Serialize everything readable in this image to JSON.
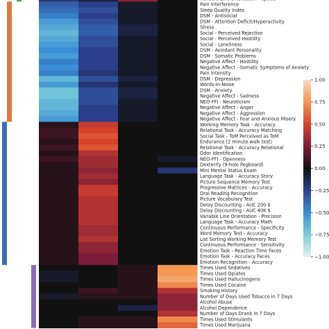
{
  "chart_data": {
    "type": "heatmap",
    "title": "",
    "xlabel": "",
    "ylabel": "",
    "n_columns": 4,
    "rows": [
      "Variable Line Orientation - Speed",
      "Pain Interference",
      "Sleep Quality Index",
      "DSM - Antisocial",
      "DSM - Attention Deficit/Hyperactivity",
      "Stress",
      "Social - Perceived Rejection",
      "Social - Perceived Hostility",
      "Social - Loneliness",
      "DSM - Avoidant Personality",
      "DSM - Somatic Problems",
      "Negative Affect - Hostility",
      "Negative Affect - Somatic Symptoms of Anxiety",
      "Pain Intensity",
      "DSM - Depression",
      "Words-In-Noise",
      "DSM - Anxiety",
      "Negative Affect - Sadness",
      "NEO-FFI - Neuroticism",
      "Negative Affect - Anger",
      "Negative Affect - Aggression",
      "Negative Affect - Fear and Anxious Misery",
      "Working Memory Task - Accuracy",
      "Relational Task - Accuracy Matching",
      "Social Task - ToM Perceived as ToM",
      "Endurance (2 minute walk test)",
      "Relational Task - Accuracy Relational",
      "Odor Identification",
      "NEO-FFI - Openness",
      "Dexterity (9-hole Pegboard)",
      "Mini Mental Status Exam",
      "Language Task - Accuracy Story",
      "Picture Sequence Memory Test",
      "Progressive Matrices - Accuracy",
      "Oral Reading Recognition",
      "Picture Vocabulary Test",
      "Delay Discounting - AUC 200 $",
      "Delay Discounting - AUC 40K $",
      "Variable Line Orientation - Precision",
      "Language Task - Accuracy Math",
      "Continuous Performance - Specificity",
      "Word Memory Test - Accuracy",
      "List Sorting Working Memory Test",
      "Continuous Performance - Sensitivity",
      "Emotion Task - Reaction Time Faces",
      "Emotion Task - Accuracy Faces",
      "Emotion Recognition - Accuracy",
      "Times Used Sedatives",
      "Times Used Opiates",
      "Times Used Hallucinogens",
      "Times Used Cocaine",
      "Smoking History",
      "Number of Days Used Tobacco in 7 Days",
      "Alcohol Abuse",
      "Alcohol Dependence",
      "Number of Days Drank in 7 Days",
      "Times Used Stimulants",
      "Times Used Marijuana"
    ],
    "values": [
      [
        -0.2,
        -0.1,
        0.3,
        0.0
      ],
      [
        -0.35,
        -0.25,
        -0.05,
        0.0
      ],
      [
        -0.4,
        -0.3,
        -0.05,
        0.0
      ],
      [
        -0.45,
        -0.25,
        -0.05,
        0.0
      ],
      [
        -0.55,
        -0.3,
        -0.05,
        0.0
      ],
      [
        -0.6,
        -0.35,
        -0.1,
        0.0
      ],
      [
        -0.65,
        -0.35,
        -0.1,
        0.0
      ],
      [
        -0.6,
        -0.3,
        -0.05,
        0.0
      ],
      [
        -0.55,
        -0.3,
        -0.05,
        0.0
      ],
      [
        -0.5,
        -0.25,
        -0.05,
        0.0
      ],
      [
        -0.55,
        -0.25,
        -0.05,
        0.0
      ],
      [
        -0.45,
        -0.25,
        -0.05,
        0.0
      ],
      [
        -0.5,
        -0.25,
        -0.05,
        0.0
      ],
      [
        -0.45,
        -0.2,
        -0.05,
        0.0
      ],
      [
        -0.65,
        -0.3,
        -0.1,
        0.0
      ],
      [
        -0.55,
        -0.2,
        -0.05,
        0.0
      ],
      [
        -0.7,
        -0.3,
        -0.1,
        0.0
      ],
      [
        -0.7,
        -0.3,
        -0.1,
        0.0
      ],
      [
        -0.65,
        -0.3,
        -0.05,
        0.0
      ],
      [
        -0.65,
        -0.25,
        -0.05,
        0.0
      ],
      [
        -0.6,
        -0.25,
        -0.05,
        0.0
      ],
      [
        -0.55,
        -0.25,
        -0.05,
        0.0
      ],
      [
        0.05,
        0.45,
        0.0,
        0.0
      ],
      [
        0.1,
        0.5,
        0.0,
        0.0
      ],
      [
        0.1,
        0.55,
        0.0,
        0.0
      ],
      [
        0.05,
        0.5,
        0.0,
        0.0
      ],
      [
        0.1,
        0.55,
        0.0,
        0.0
      ],
      [
        0.05,
        0.4,
        0.0,
        0.0
      ],
      [
        0.1,
        0.35,
        0.0,
        -0.05
      ],
      [
        0.05,
        0.35,
        0.0,
        0.0
      ],
      [
        0.05,
        0.3,
        0.0,
        -0.2
      ],
      [
        0.05,
        0.35,
        0.0,
        0.0
      ],
      [
        0.05,
        0.3,
        0.0,
        0.0
      ],
      [
        0.05,
        0.45,
        0.0,
        0.0
      ],
      [
        0.05,
        0.45,
        0.0,
        0.0
      ],
      [
        0.05,
        0.4,
        0.0,
        0.0
      ],
      [
        0.05,
        0.4,
        0.0,
        0.0
      ],
      [
        0.05,
        0.4,
        0.0,
        0.0
      ],
      [
        0.05,
        0.4,
        0.0,
        0.0
      ],
      [
        0.05,
        0.4,
        0.0,
        0.0
      ],
      [
        0.05,
        0.35,
        0.0,
        0.0
      ],
      [
        0.05,
        0.35,
        0.0,
        0.0
      ],
      [
        0.05,
        0.4,
        0.0,
        0.0
      ],
      [
        0.05,
        0.3,
        0.0,
        0.0
      ],
      [
        0.05,
        0.3,
        0.0,
        0.0
      ],
      [
        0.05,
        0.25,
        0.0,
        0.0
      ],
      [
        0.05,
        0.25,
        0.0,
        0.0
      ],
      [
        0.0,
        0.0,
        0.05,
        0.75
      ],
      [
        -0.05,
        0.0,
        0.05,
        0.75
      ],
      [
        -0.05,
        0.0,
        0.05,
        0.8
      ],
      [
        0.0,
        0.0,
        0.05,
        0.7
      ],
      [
        0.0,
        0.1,
        0.05,
        0.4
      ],
      [
        -0.05,
        0.05,
        0.05,
        0.3
      ],
      [
        0.0,
        0.0,
        0.0,
        0.3
      ],
      [
        0.0,
        0.0,
        -0.1,
        0.3
      ],
      [
        0.0,
        0.0,
        0.0,
        0.4
      ],
      [
        0.0,
        0.05,
        0.05,
        0.7
      ],
      [
        0.0,
        0.05,
        0.05,
        0.6
      ]
    ],
    "vmin": -1.0,
    "vmax": 1.0,
    "colormap": "diverging icefire: cyan (-1) to black (0) to orange (+1)",
    "colorbar_ticks": [
      "1.00",
      "0.75",
      "0.50",
      "0.25",
      "0.00",
      "−0.25",
      "−0.50",
      "−0.75",
      "−1.00"
    ],
    "row_groups": [
      {
        "start_row": 0,
        "end_row": 0,
        "color": "#3aa655"
      },
      {
        "start_row": 1,
        "end_row": 21,
        "color": "#e07b3a"
      },
      {
        "start_row": 22,
        "end_row": 46,
        "color": "#3a6fb5"
      },
      {
        "start_row": 47,
        "end_row": 57,
        "color": "#8a6bbd"
      }
    ],
    "grid": false,
    "legend": "colorbar right"
  }
}
